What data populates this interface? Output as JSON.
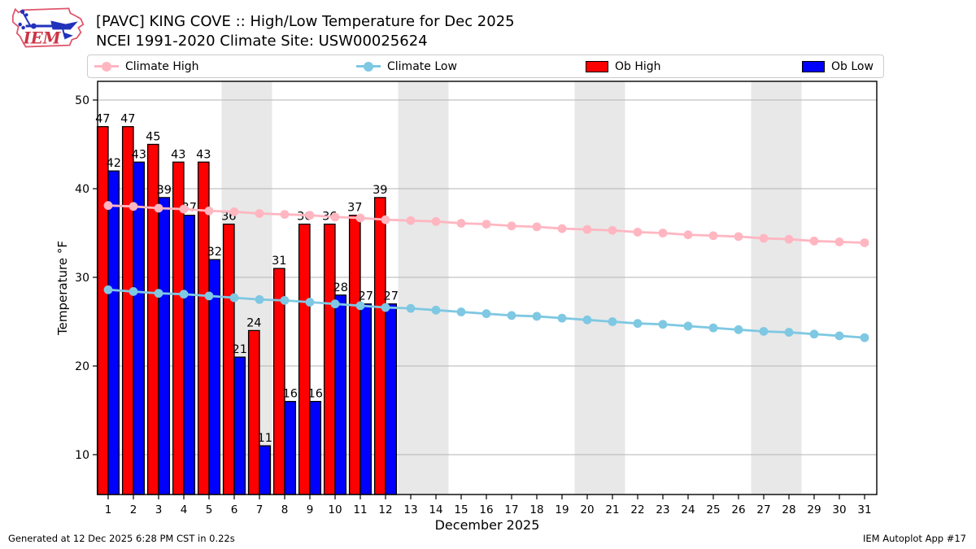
{
  "header": {
    "title_line1": "[PAVC] KING COVE :: High/Low Temperature for Dec 2025",
    "title_line2": "NCEI 1991-2020 Climate Site: USW00025624",
    "logo_text": "IEM"
  },
  "legend": [
    {
      "label": "Climate High",
      "type": "line",
      "color": "#ffb6c1"
    },
    {
      "label": "Climate Low",
      "type": "line",
      "color": "#7ec8e3"
    },
    {
      "label": "Ob High",
      "type": "rect",
      "color": "#ff0000"
    },
    {
      "label": "Ob Low",
      "type": "rect",
      "color": "#0000ff"
    }
  ],
  "footer": {
    "left": "Generated at 12 Dec 2025 6:28 PM CST in 0.22s",
    "right": "IEM Autoplot App #17"
  },
  "chart_data": {
    "type": "bar",
    "title": "[PAVC] KING COVE :: High/Low Temperature for Dec 2025",
    "subtitle": "NCEI 1991-2020 Climate Site: USW00025624",
    "xlabel": "December 2025",
    "ylabel": "Temperature °F",
    "x_days": [
      1,
      2,
      3,
      4,
      5,
      6,
      7,
      8,
      9,
      10,
      11,
      12,
      13,
      14,
      15,
      16,
      17,
      18,
      19,
      20,
      21,
      22,
      23,
      24,
      25,
      26,
      27,
      28,
      29,
      30,
      31
    ],
    "yticks": [
      10,
      20,
      30,
      40,
      50
    ],
    "ylim": [
      5.5,
      52.1
    ],
    "grid": "horizontal",
    "weekend_bands": [
      [
        6,
        7
      ],
      [
        13,
        14
      ],
      [
        20,
        21
      ],
      [
        27,
        28
      ]
    ],
    "colors": {
      "climate_high": "#ffb6c1",
      "climate_low": "#7ec8e3",
      "ob_high": "#ff0000",
      "ob_low": "#0000ff",
      "band": "#e8e8e8",
      "grid": "#b3b3b3"
    },
    "series": [
      {
        "name": "Climate High",
        "type": "line",
        "x": [
          1,
          2,
          3,
          4,
          5,
          6,
          7,
          8,
          9,
          10,
          11,
          12,
          13,
          14,
          15,
          16,
          17,
          18,
          19,
          20,
          21,
          22,
          23,
          24,
          25,
          26,
          27,
          28,
          29,
          30,
          31
        ],
        "values": [
          38.1,
          38.0,
          37.8,
          37.7,
          37.5,
          37.4,
          37.2,
          37.1,
          37.0,
          36.8,
          36.7,
          36.5,
          36.4,
          36.3,
          36.1,
          36.0,
          35.8,
          35.7,
          35.5,
          35.4,
          35.3,
          35.1,
          35.0,
          34.8,
          34.7,
          34.6,
          34.4,
          34.3,
          34.1,
          34.0,
          33.9
        ]
      },
      {
        "name": "Climate Low",
        "type": "line",
        "x": [
          1,
          2,
          3,
          4,
          5,
          6,
          7,
          8,
          9,
          10,
          11,
          12,
          13,
          14,
          15,
          16,
          17,
          18,
          19,
          20,
          21,
          22,
          23,
          24,
          25,
          26,
          27,
          28,
          29,
          30,
          31
        ],
        "values": [
          28.6,
          28.4,
          28.2,
          28.1,
          27.9,
          27.7,
          27.5,
          27.4,
          27.2,
          27.0,
          26.8,
          26.6,
          26.5,
          26.3,
          26.1,
          25.9,
          25.7,
          25.6,
          25.4,
          25.2,
          25.0,
          24.8,
          24.7,
          24.5,
          24.3,
          24.1,
          23.9,
          23.8,
          23.6,
          23.4,
          23.2
        ]
      },
      {
        "name": "Ob High",
        "type": "bar",
        "labeled": true,
        "x": [
          1,
          2,
          3,
          4,
          5,
          6,
          7,
          8,
          9,
          10,
          11,
          12
        ],
        "values": [
          47,
          47,
          45,
          43,
          43,
          36,
          24,
          31,
          36,
          36,
          37,
          39
        ]
      },
      {
        "name": "Ob Low",
        "type": "bar",
        "labeled": true,
        "x": [
          1,
          2,
          3,
          4,
          5,
          6,
          7,
          8,
          9,
          10,
          11,
          12
        ],
        "values": [
          42,
          43,
          39,
          37,
          32,
          21,
          11,
          16,
          16,
          28,
          27,
          27
        ]
      }
    ]
  }
}
